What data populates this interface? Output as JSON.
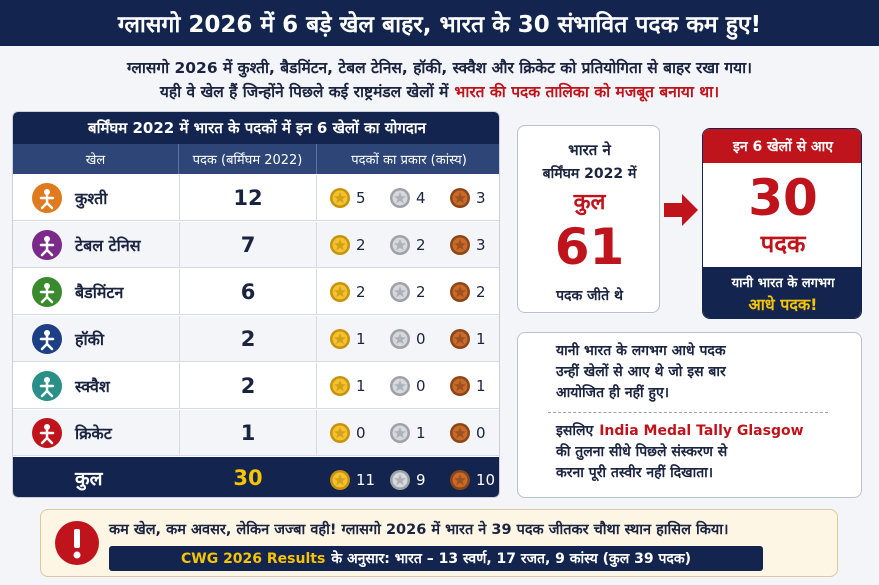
{
  "header": {
    "title": "ग्लासगो 2026 में 6 बड़े खेल बाहर, भारत के 30 संभावित पदक कम हुए!"
  },
  "intro": {
    "line1": "ग्लासगो 2026 में कुश्ती, बैडमिंटन, टेबल टेनिस, हॉकी, स्क्वैश और क्रिकेट को प्रतियोगिता से बाहर रखा गया।",
    "line2": {
      "text": "यही वे खेल हैं जिन्होंने पिछले कई राष्ट्रमंडल खेलों में",
      "highlight": "भारत की पदक तालिका को मजबूत बनाया था।"
    }
  },
  "table": {
    "title": "बर्मिंघम 2022 में भारत के पदकों में इन 6 खेलों का योगदान",
    "columns": [
      "खेल",
      "पदक (बर्मिंघम 2022)",
      "पदकों का प्रकार (कांस्य)"
    ],
    "rows": [
      [
        "कुश्ती",
        12,
        5,
        4,
        3
      ],
      [
        "टेबल टेनिस",
        7,
        2,
        2,
        3
      ],
      [
        "बैडमिंटन",
        6,
        2,
        2,
        2
      ],
      [
        "हॉकी",
        2,
        1,
        0,
        1
      ],
      [
        "स्क्वैश",
        2,
        1,
        0,
        1
      ],
      [
        "क्रिकेट",
        1,
        0,
        1,
        0
      ]
    ],
    "total": [
      "कुल",
      30,
      11,
      9,
      10
    ]
  },
  "summary": {
    "lines": [
      "भारत ने",
      "बर्मिंघम 2022 में"
    ],
    "highlight": "कुल",
    "value": 61,
    "caption": "पदक जीते थे"
  },
  "result": {
    "header": "इन 6 खेलों से आए",
    "value": 30,
    "unit": "पदक",
    "note": "यानी भारत के लगभग",
    "emphasis": "आधे पदक!"
  },
  "explanation": {
    "para1": [
      "यानी भारत के लगभग आधे पदक",
      "उन्हीं खेलों से आए थे जो इस बार",
      "आयोजित ही नहीं हुए।"
    ],
    "para2": {
      "lead": "इसलिए",
      "highlight": "India Medal Tally Glasgow",
      "lines": [
        "की तुलना सीधे पिछले संस्करण से",
        "करना पूरी तस्वीर नहीं दिखाता।"
      ]
    }
  },
  "footer": {
    "line": "कम खेल, कम अवसर, लेकिन जज्बा वही! ग्लासगो 2026 में भारत ने 39 पदक जीतकर चौथा स्थान हासिल किया।",
    "bar": {
      "highlight": "CWG 2026 Results",
      "text": "के अनुसार: भारत – 13 स्वर्ण, 17 रजत, 9 कांस्य  (कुल 39 पदक)"
    }
  }
}
